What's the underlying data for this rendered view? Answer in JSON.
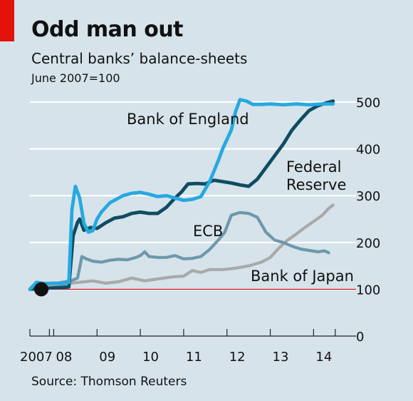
{
  "header": {
    "title": "Odd man out",
    "subtitle": "Central banks’ balance-sheets",
    "unit": "June 2007=100"
  },
  "footer": {
    "source": "Source: Thomson Reuters"
  },
  "colors": {
    "background": "#d6e3ea",
    "accent_red": "#e3120b",
    "boe": "#26a9e0",
    "fed": "#0e4d64",
    "ecb": "#6d98ab",
    "boj": "#a9a9a9",
    "baseline": "#c7141a"
  },
  "chart_data": {
    "type": "line",
    "title": "Odd man out",
    "subtitle": "Central banks’ balance-sheets",
    "ylabel": "June 2007=100",
    "xlim": [
      2007.45,
      2014.75
    ],
    "ylim": [
      0,
      500
    ],
    "y_ticks": [
      0,
      100,
      200,
      300,
      400,
      500
    ],
    "x_ticks": [
      {
        "value": 2007.45,
        "label": "2007"
      },
      {
        "value": 2008,
        "label": "08"
      },
      {
        "value": 2009,
        "label": "09"
      },
      {
        "value": 2010,
        "label": "10"
      },
      {
        "value": 2011,
        "label": "11"
      },
      {
        "value": 2012,
        "label": "12"
      },
      {
        "value": 2013,
        "label": "13"
      },
      {
        "value": 2014,
        "label": "14"
      }
    ],
    "grid": true,
    "baseline": 100,
    "start_marker": {
      "x": 2007.45,
      "y": 100
    },
    "series": [
      {
        "key": "boj",
        "name": "Bank of Japan",
        "points": [
          [
            2007.45,
            100
          ],
          [
            2007.7,
            105
          ],
          [
            2008.0,
            108
          ],
          [
            2008.3,
            112
          ],
          [
            2008.6,
            115
          ],
          [
            2008.9,
            118
          ],
          [
            2009.2,
            113
          ],
          [
            2009.5,
            116
          ],
          [
            2009.8,
            124
          ],
          [
            2010.1,
            118
          ],
          [
            2010.4,
            122
          ],
          [
            2010.7,
            126
          ],
          [
            2011.0,
            128
          ],
          [
            2011.2,
            140
          ],
          [
            2011.4,
            136
          ],
          [
            2011.6,
            142
          ],
          [
            2011.9,
            142
          ],
          [
            2012.2,
            145
          ],
          [
            2012.5,
            150
          ],
          [
            2012.8,
            158
          ],
          [
            2013.0,
            168
          ],
          [
            2013.2,
            188
          ],
          [
            2013.4,
            205
          ],
          [
            2013.6,
            218
          ],
          [
            2013.8,
            232
          ],
          [
            2014.0,
            245
          ],
          [
            2014.2,
            258
          ],
          [
            2014.35,
            273
          ],
          [
            2014.45,
            280
          ]
        ]
      },
      {
        "key": "ecb",
        "name": "ECB",
        "points": [
          [
            2007.45,
            100
          ],
          [
            2007.6,
            110
          ],
          [
            2007.8,
            113
          ],
          [
            2008.0,
            112
          ],
          [
            2008.2,
            115
          ],
          [
            2008.4,
            118
          ],
          [
            2008.55,
            124
          ],
          [
            2008.65,
            170
          ],
          [
            2008.75,
            165
          ],
          [
            2008.9,
            160
          ],
          [
            2009.1,
            158
          ],
          [
            2009.3,
            162
          ],
          [
            2009.5,
            164
          ],
          [
            2009.7,
            163
          ],
          [
            2009.9,
            168
          ],
          [
            2010.0,
            172
          ],
          [
            2010.1,
            180
          ],
          [
            2010.2,
            170
          ],
          [
            2010.4,
            168
          ],
          [
            2010.6,
            168
          ],
          [
            2010.8,
            172
          ],
          [
            2011.0,
            165
          ],
          [
            2011.2,
            166
          ],
          [
            2011.4,
            170
          ],
          [
            2011.6,
            185
          ],
          [
            2011.8,
            205
          ],
          [
            2011.95,
            222
          ],
          [
            2012.1,
            258
          ],
          [
            2012.3,
            264
          ],
          [
            2012.5,
            262
          ],
          [
            2012.7,
            254
          ],
          [
            2012.9,
            222
          ],
          [
            2013.1,
            205
          ],
          [
            2013.3,
            200
          ],
          [
            2013.5,
            192
          ],
          [
            2013.7,
            186
          ],
          [
            2013.9,
            183
          ],
          [
            2014.1,
            180
          ],
          [
            2014.25,
            182
          ],
          [
            2014.35,
            178
          ]
        ]
      },
      {
        "key": "fed",
        "name": "Federal Reserve",
        "points": [
          [
            2007.45,
            100
          ],
          [
            2007.6,
            101
          ],
          [
            2007.8,
            102
          ],
          [
            2008.0,
            103
          ],
          [
            2008.2,
            104
          ],
          [
            2008.35,
            105
          ],
          [
            2008.45,
            215
          ],
          [
            2008.55,
            243
          ],
          [
            2008.6,
            250
          ],
          [
            2008.7,
            226
          ],
          [
            2008.85,
            232
          ],
          [
            2009.0,
            230
          ],
          [
            2009.2,
            242
          ],
          [
            2009.4,
            252
          ],
          [
            2009.6,
            255
          ],
          [
            2009.8,
            262
          ],
          [
            2010.0,
            265
          ],
          [
            2010.2,
            262
          ],
          [
            2010.4,
            262
          ],
          [
            2010.6,
            275
          ],
          [
            2010.8,
            295
          ],
          [
            2010.95,
            308
          ],
          [
            2011.1,
            325
          ],
          [
            2011.3,
            326
          ],
          [
            2011.5,
            325
          ],
          [
            2011.7,
            333
          ],
          [
            2011.9,
            330
          ],
          [
            2012.1,
            327
          ],
          [
            2012.3,
            323
          ],
          [
            2012.5,
            320
          ],
          [
            2012.7,
            335
          ],
          [
            2012.9,
            360
          ],
          [
            2013.1,
            385
          ],
          [
            2013.3,
            410
          ],
          [
            2013.5,
            440
          ],
          [
            2013.7,
            462
          ],
          [
            2013.9,
            482
          ],
          [
            2014.1,
            492
          ],
          [
            2014.25,
            497
          ],
          [
            2014.45,
            502
          ]
        ]
      },
      {
        "key": "boe",
        "name": "Bank of England",
        "points": [
          [
            2007.45,
            100
          ],
          [
            2007.6,
            115
          ],
          [
            2007.8,
            112
          ],
          [
            2008.0,
            113
          ],
          [
            2008.2,
            112
          ],
          [
            2008.35,
            115
          ],
          [
            2008.42,
            270
          ],
          [
            2008.5,
            320
          ],
          [
            2008.6,
            295
          ],
          [
            2008.7,
            240
          ],
          [
            2008.8,
            222
          ],
          [
            2008.9,
            225
          ],
          [
            2009.0,
            250
          ],
          [
            2009.1,
            265
          ],
          [
            2009.2,
            275
          ],
          [
            2009.3,
            285
          ],
          [
            2009.4,
            290
          ],
          [
            2009.6,
            300
          ],
          [
            2009.8,
            305
          ],
          [
            2010.0,
            307
          ],
          [
            2010.2,
            303
          ],
          [
            2010.4,
            298
          ],
          [
            2010.6,
            300
          ],
          [
            2010.8,
            295
          ],
          [
            2011.0,
            290
          ],
          [
            2011.2,
            292
          ],
          [
            2011.4,
            298
          ],
          [
            2011.6,
            330
          ],
          [
            2011.8,
            375
          ],
          [
            2011.9,
            400
          ],
          [
            2012.0,
            420
          ],
          [
            2012.1,
            440
          ],
          [
            2012.2,
            480
          ],
          [
            2012.3,
            505
          ],
          [
            2012.45,
            502
          ],
          [
            2012.6,
            495
          ],
          [
            2012.8,
            495
          ],
          [
            2013.0,
            496
          ],
          [
            2013.3,
            494
          ],
          [
            2013.6,
            496
          ],
          [
            2013.9,
            494
          ],
          [
            2014.2,
            496
          ],
          [
            2014.45,
            496
          ]
        ]
      }
    ],
    "annotations": [
      {
        "series": "boe",
        "lines": [
          "Bank of England"
        ]
      },
      {
        "series": "fed",
        "lines": [
          "Federal",
          "Reserve"
        ]
      },
      {
        "series": "ecb",
        "lines": [
          "ECB"
        ]
      },
      {
        "series": "boj",
        "lines": [
          "Bank of Japan"
        ]
      }
    ]
  }
}
